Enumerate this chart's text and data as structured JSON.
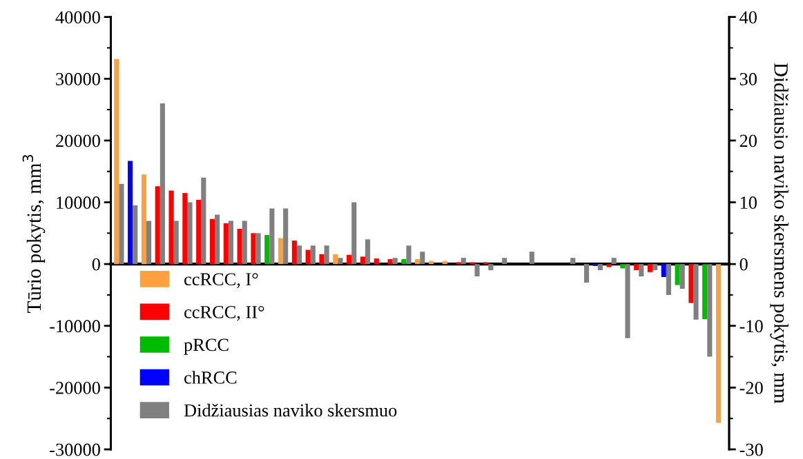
{
  "chart_data": {
    "type": "bar",
    "ylabel": "Tūrio pokytis, mm$^{3}$",
    "y2label": "Didžiausio naviko skersmens pokytis, mm",
    "categories": [
      null,
      null,
      null,
      null,
      null,
      null,
      null,
      null,
      null,
      null,
      null,
      null,
      null,
      null,
      null,
      null,
      null,
      null,
      null,
      null,
      null,
      null,
      null,
      null,
      null,
      null,
      null,
      null,
      null,
      null,
      null,
      null,
      null,
      null,
      null,
      null,
      null,
      null,
      null,
      null,
      null,
      null,
      null,
      null,
      null
    ],
    "ylim": [
      -30000,
      40000
    ],
    "yticks": [
      -30000,
      {
        "value": -25000,
        "label": null
      },
      -20000,
      {
        "value": -15000,
        "label": null
      },
      -10000,
      {
        "value": -5000,
        "label": null
      },
      0,
      {
        "value": 5000,
        "label": null
      },
      10000,
      {
        "value": 15000,
        "label": null
      },
      20000,
      {
        "value": 25000,
        "label": null
      },
      30000,
      {
        "value": 35000,
        "label": null
      },
      40000
    ],
    "y2lim": [
      -30,
      40
    ],
    "y2ticks": [
      -30,
      {
        "value": -25,
        "label": null
      },
      -20,
      {
        "value": -15,
        "label": null
      },
      -10,
      {
        "value": -5,
        "label": null
      },
      0,
      {
        "value": 5,
        "label": null
      },
      10,
      {
        "value": 15,
        "label": null
      },
      20,
      {
        "value": 25,
        "label": null
      },
      30,
      {
        "value": 35,
        "label": null
      },
      40
    ],
    "legend": "bottom left",
    "series": [
      {
        "name": "ccRCC, I°",
        "color": "#ffa040",
        "values": [
          33200,
          null,
          14500,
          null,
          null,
          null,
          null,
          null,
          null,
          null,
          null,
          null,
          4200,
          null,
          null,
          null,
          1600,
          null,
          null,
          null,
          null,
          null,
          800,
          500,
          500,
          null,
          null,
          null,
          null,
          null,
          null,
          null,
          null,
          null,
          null,
          null,
          null,
          null,
          null,
          null,
          null,
          null,
          null,
          null,
          -25700
        ]
      },
      {
        "name": "ccRCC, II°",
        "color": "#ff0000",
        "values": [
          null,
          null,
          null,
          12600,
          11900,
          11500,
          10400,
          7300,
          6600,
          5700,
          5000,
          null,
          null,
          3800,
          2300,
          1600,
          null,
          1500,
          1200,
          900,
          800,
          null,
          null,
          null,
          null,
          300,
          300,
          300,
          null,
          null,
          null,
          null,
          null,
          null,
          null,
          null,
          -500,
          null,
          -1000,
          -1300,
          null,
          null,
          -6300,
          null,
          null
        ]
      },
      {
        "name": "pRCC",
        "color": "#00bb00",
        "values": [
          null,
          null,
          null,
          null,
          null,
          null,
          null,
          null,
          null,
          null,
          null,
          4700,
          null,
          null,
          null,
          null,
          null,
          null,
          null,
          null,
          null,
          800,
          null,
          null,
          null,
          null,
          null,
          null,
          null,
          null,
          null,
          null,
          null,
          null,
          null,
          null,
          null,
          -700,
          null,
          null,
          null,
          -3400,
          null,
          -8900,
          null
        ]
      },
      {
        "name": "chRCC",
        "color": "#0000ff",
        "values": [
          null,
          16700,
          null,
          null,
          null,
          null,
          null,
          null,
          null,
          null,
          null,
          null,
          null,
          null,
          null,
          null,
          null,
          null,
          null,
          null,
          null,
          null,
          null,
          null,
          null,
          null,
          null,
          null,
          null,
          null,
          null,
          null,
          null,
          null,
          null,
          -300,
          null,
          null,
          null,
          null,
          -2100,
          null,
          null,
          null,
          null
        ]
      },
      {
        "name": "Didžiausias naviko skersmuo",
        "color": "#808080",
        "axis": "y2",
        "values": [
          13,
          9.5,
          7,
          26,
          7,
          10,
          14,
          8,
          7,
          7,
          5,
          9,
          9,
          3,
          3,
          3,
          1,
          10,
          4,
          0,
          1,
          3,
          2,
          0,
          0,
          1,
          -2,
          -1,
          1,
          0,
          2,
          0,
          0,
          1,
          -3,
          -1,
          1,
          -12,
          -2,
          -1,
          -5,
          -4,
          -9,
          -15,
          0
        ]
      }
    ]
  }
}
